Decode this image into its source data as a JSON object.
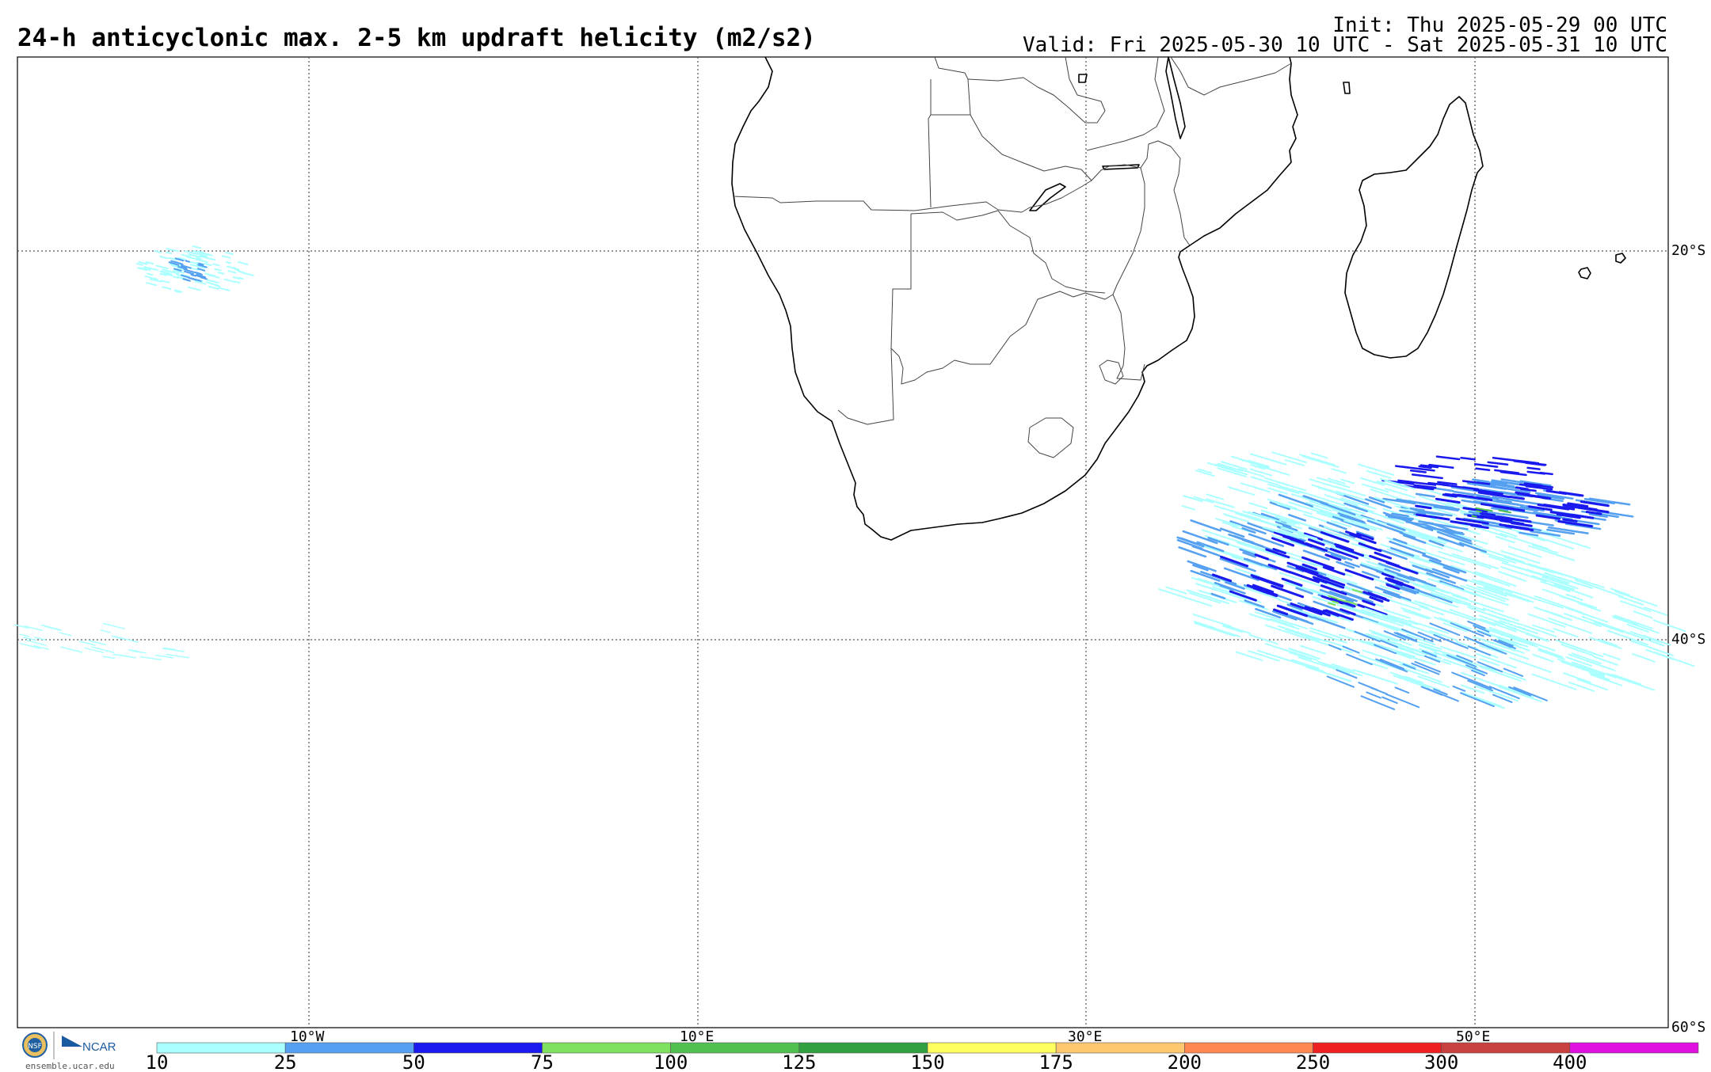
{
  "title": "24-h anticyclonic max. 2-5 km updraft helicity (m2/s2)",
  "init": "Init: Thu 2025-05-29 00 UTC",
  "valid": "Valid: Fri 2025-05-30 10 UTC - Sat 2025-05-31 10 UTC",
  "map": {
    "lat_labels": [
      "20°S",
      "40°S",
      "60°S"
    ],
    "lon_labels": [
      "10°W",
      "10°E",
      "30°E",
      "50°E"
    ]
  },
  "legend": {
    "ticks": [
      "10",
      "25",
      "50",
      "75",
      "100",
      "125",
      "150",
      "175",
      "200",
      "250",
      "300",
      "400"
    ],
    "colors": [
      "#aaffff",
      "#55a0f0",
      "#1a1aee",
      "#80e060",
      "#50c050",
      "#30a040",
      "#ffff60",
      "#ffc870",
      "#ff8850",
      "#ee2020",
      "#c84040",
      "#e010e0"
    ]
  },
  "logos": {
    "nsf": "NSF",
    "ncar": "NCAR",
    "url": "ensemble.ucar.edu"
  }
}
